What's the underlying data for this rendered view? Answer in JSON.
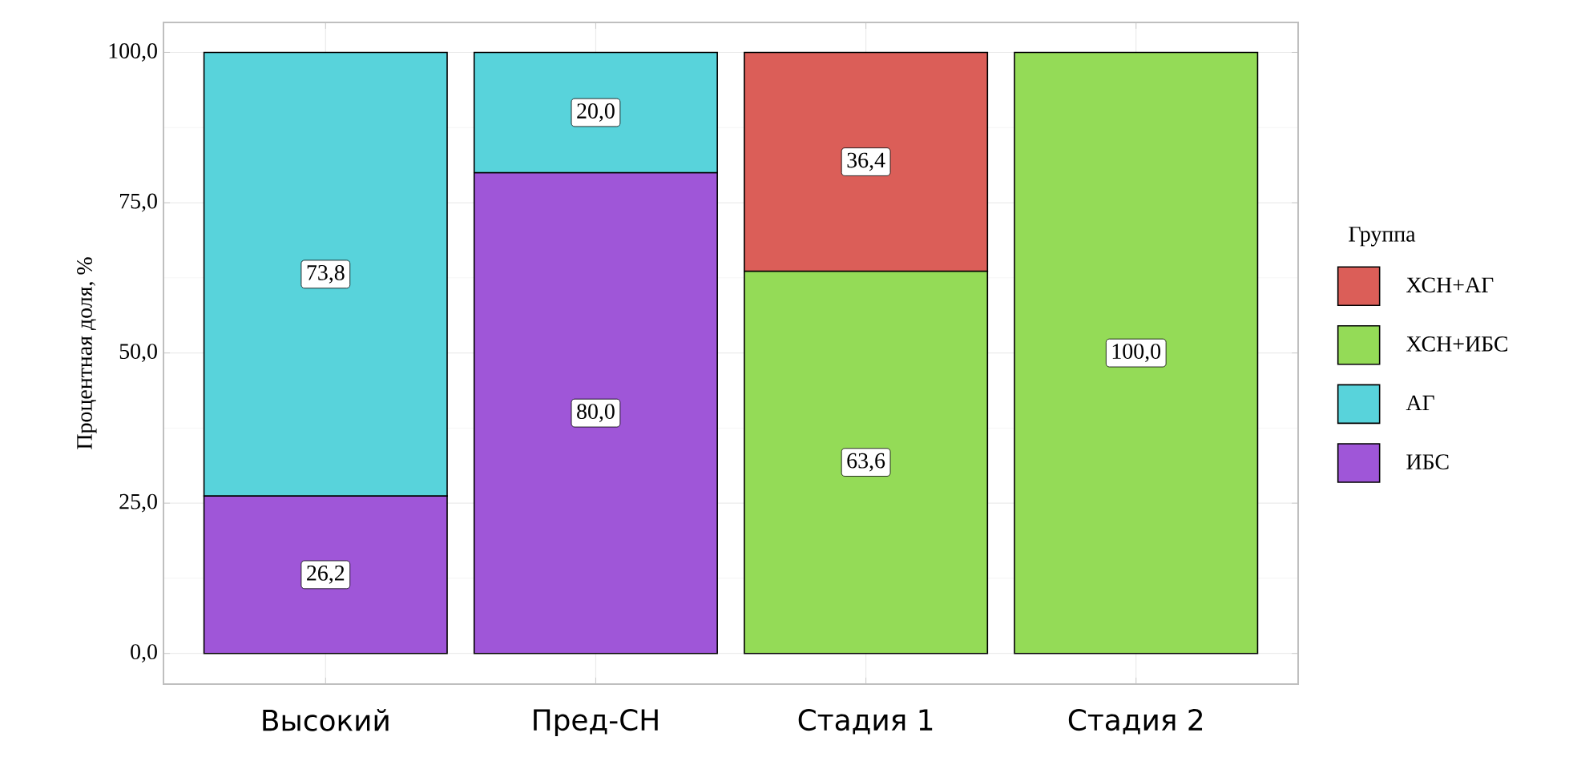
{
  "chart_data": {
    "type": "bar",
    "stacked": true,
    "ylabel": "Процентная доля, %",
    "legend_title": "Группа",
    "legend": "right",
    "grid": true,
    "categories": [
      "Высокий",
      "Пред-СН",
      "Стадия 1",
      "Стадия 2"
    ],
    "ylim": [
      -5.1,
      105
    ],
    "yticks": [
      {
        "value": 0,
        "label": "0,0"
      },
      {
        "value": 25,
        "label": "25,0"
      },
      {
        "value": 50,
        "label": "50,0"
      },
      {
        "value": 75,
        "label": "75,0"
      },
      {
        "value": 100,
        "label": "100,0"
      }
    ],
    "series": [
      {
        "name": "ИБС",
        "color": "#9f56d8",
        "values": [
          26.2,
          80.0,
          null,
          null
        ],
        "value_labels": [
          "26,2",
          "80,0",
          null,
          null
        ]
      },
      {
        "name": "АГ",
        "color": "#58d3db",
        "values": [
          73.8,
          20.0,
          null,
          null
        ],
        "value_labels": [
          "73,8",
          "20,0",
          null,
          null
        ]
      },
      {
        "name": "ХСН+ИБС",
        "color": "#94db57",
        "values": [
          null,
          null,
          63.6,
          100.0
        ],
        "value_labels": [
          null,
          null,
          "63,6",
          "100,0"
        ]
      },
      {
        "name": "ХСН+АГ",
        "color": "#db5e58",
        "values": [
          null,
          null,
          36.4,
          null
        ],
        "value_labels": [
          null,
          null,
          "36,4",
          null
        ]
      }
    ]
  }
}
